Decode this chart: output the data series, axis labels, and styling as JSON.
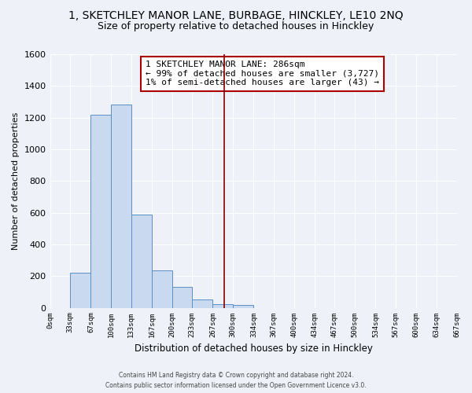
{
  "title": "1, SKETCHLEY MANOR LANE, BURBAGE, HINCKLEY, LE10 2NQ",
  "subtitle": "Size of property relative to detached houses in Hinckley",
  "xlabel": "Distribution of detached houses by size in Hinckley",
  "ylabel": "Number of detached properties",
  "bin_edges": [
    0,
    33,
    67,
    100,
    133,
    167,
    200,
    233,
    267,
    300,
    334,
    367,
    400,
    434,
    467,
    500,
    534,
    567,
    600,
    634,
    667
  ],
  "bar_heights": [
    0,
    220,
    1220,
    1285,
    590,
    235,
    130,
    50,
    25,
    20,
    0,
    0,
    0,
    0,
    0,
    0,
    0,
    0,
    0,
    0
  ],
  "bar_color": "#c8d9f0",
  "bar_edge_color": "#5b8fc4",
  "vline_x": 286,
  "vline_color": "#8b0000",
  "ylim": [
    0,
    1600
  ],
  "yticks": [
    0,
    200,
    400,
    600,
    800,
    1000,
    1200,
    1400,
    1600
  ],
  "xtick_labels": [
    "0sqm",
    "33sqm",
    "67sqm",
    "100sqm",
    "133sqm",
    "167sqm",
    "200sqm",
    "233sqm",
    "267sqm",
    "300sqm",
    "334sqm",
    "367sqm",
    "400sqm",
    "434sqm",
    "467sqm",
    "500sqm",
    "534sqm",
    "567sqm",
    "600sqm",
    "634sqm",
    "667sqm"
  ],
  "annotation_title": "1 SKETCHLEY MANOR LANE: 286sqm",
  "annotation_line1": "← 99% of detached houses are smaller (3,727)",
  "annotation_line2": "1% of semi-detached houses are larger (43) →",
  "footer_line1": "Contains HM Land Registry data © Crown copyright and database right 2024.",
  "footer_line2": "Contains public sector information licensed under the Open Government Licence v3.0.",
  "background_color": "#eef2f8",
  "grid_color": "#ffffff",
  "title_fontsize": 10,
  "subtitle_fontsize": 9,
  "annotation_fontsize": 8
}
